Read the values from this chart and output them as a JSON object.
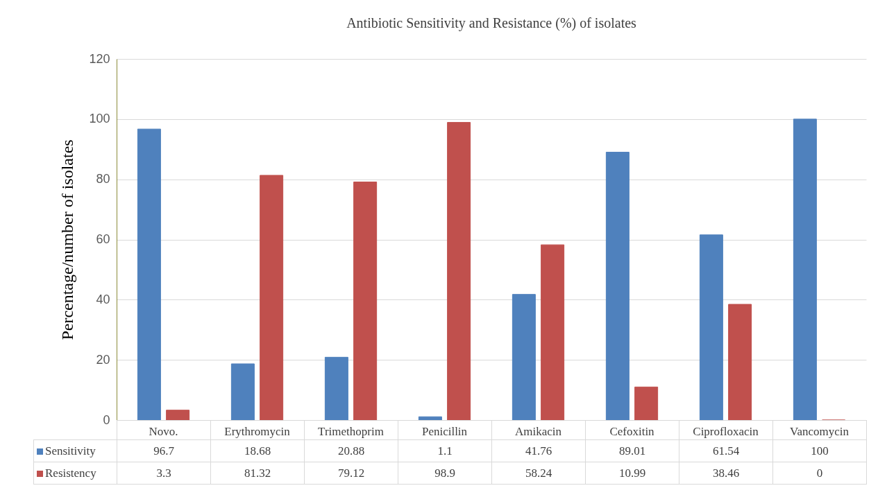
{
  "chart_data": {
    "type": "bar",
    "title": "Antibiotic Sensitivity and Resistance (%) of isolates",
    "ylabel": "Percentage/number of isolates",
    "categories": [
      "Novo.",
      "Erythromycin",
      "Trimethoprim",
      "Penicillin",
      "Amikacin",
      "Cefoxitin",
      "Ciprofloxacin",
      "Vancomycin"
    ],
    "series": [
      {
        "name": "Sensitivity",
        "color": "#4f81bd",
        "values": [
          96.7,
          18.68,
          20.88,
          1.1,
          41.76,
          89.01,
          61.54,
          100
        ]
      },
      {
        "name": "Resistency",
        "color": "#c0504d",
        "values": [
          3.3,
          81.32,
          79.12,
          98.9,
          58.24,
          10.99,
          38.46,
          0
        ]
      }
    ],
    "ylim": [
      0,
      120
    ],
    "yticks": [
      0,
      20,
      40,
      60,
      80,
      100,
      120
    ],
    "grid": "y",
    "legend": "bottom",
    "data_labels": true
  }
}
